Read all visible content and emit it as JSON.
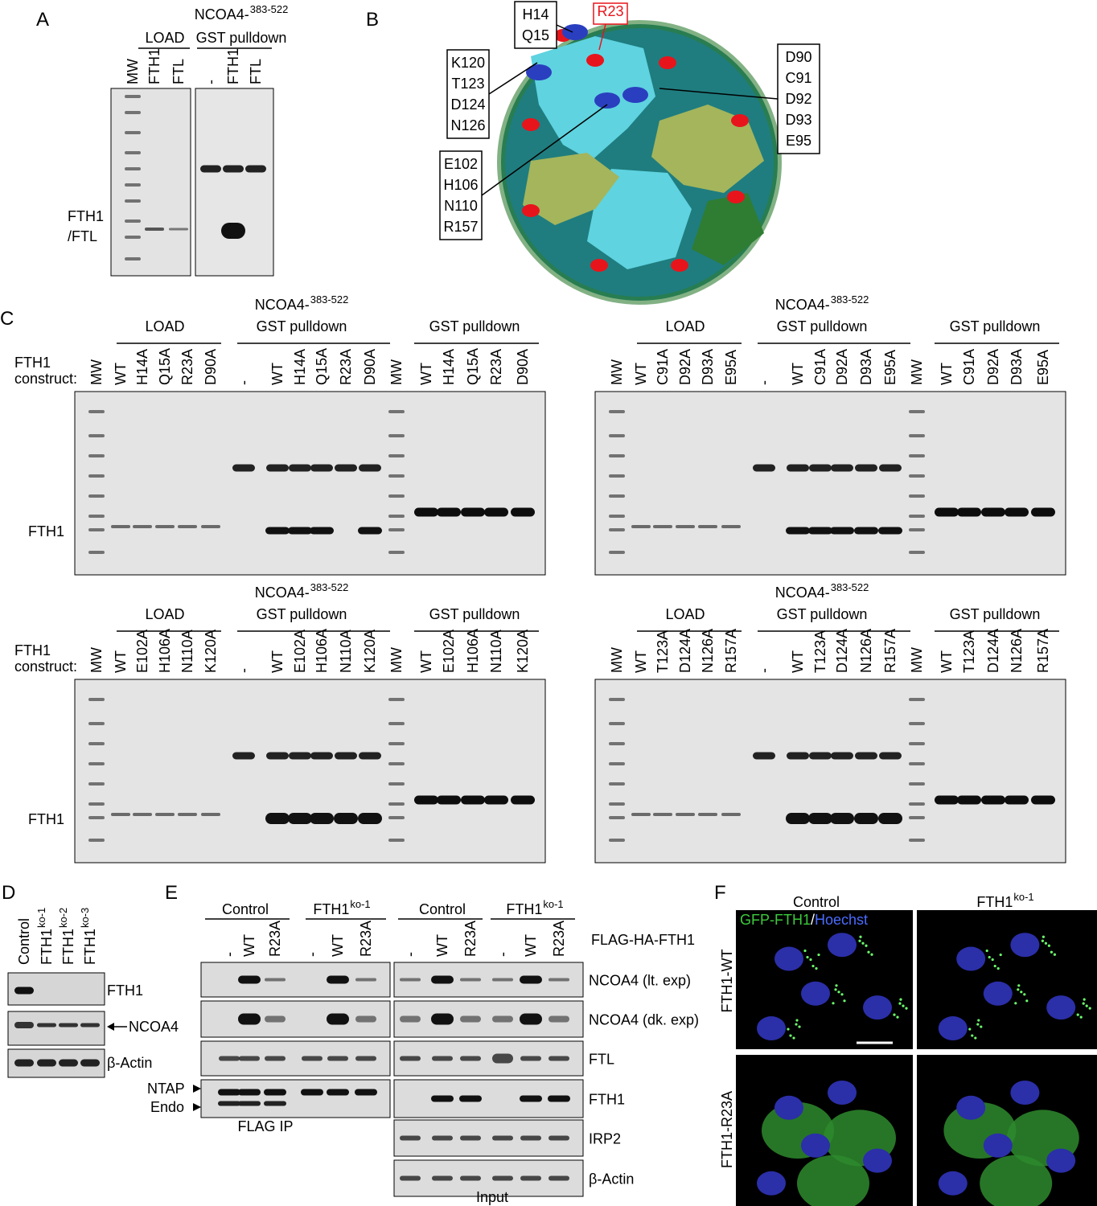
{
  "A": {
    "letter": "A",
    "load": "LOAD",
    "pulldown": {
      "text": "NCOA4-",
      "sup": "383-522",
      "line2": "GST pulldown"
    },
    "lanes": [
      "MW",
      "FTH1",
      "FTL",
      "-",
      "FTH1",
      "FTL"
    ],
    "band_label": [
      "FTH1",
      "/FTL"
    ]
  },
  "B": {
    "letter": "B",
    "callouts": [
      [
        "H14",
        "Q15"
      ],
      [
        "R23"
      ],
      [
        "K120",
        "T123",
        "D124",
        "N126"
      ],
      [
        "D90",
        "C91",
        "D92",
        "D93",
        "E95"
      ],
      [
        "E102",
        "H106",
        "N110",
        "R157"
      ]
    ]
  },
  "C": {
    "letter": "C",
    "gels": [
      {
        "construct_label": [
          "FTH1",
          "construct:"
        ],
        "band_label": "FTH1",
        "groups": [
          {
            "text": "LOAD"
          },
          {
            "text": "NCOA4-",
            "sup": "383-522",
            "line2": "GST pulldown"
          },
          {
            "text": "GST pulldown"
          }
        ],
        "lanes": [
          "MW",
          "WT",
          "H14A",
          "Q15A",
          "R23A",
          "D90A",
          "-",
          "WT",
          "H14A",
          "Q15A",
          "R23A",
          "D90A",
          "MW",
          "WT",
          "H14A",
          "Q15A",
          "R23A",
          "D90A"
        ]
      },
      {
        "groups": [
          {
            "text": "LOAD"
          },
          {
            "text": "NCOA4-",
            "sup": "383-522",
            "line2": "GST pulldown"
          },
          {
            "text": "GST pulldown"
          }
        ],
        "lanes": [
          "MW",
          "WT",
          "C91A",
          "D92A",
          "D93A",
          "E95A",
          "-",
          "WT",
          "C91A",
          "D92A",
          "D93A",
          "E95A",
          "MW",
          "WT",
          "C91A",
          "D92A",
          "D93A",
          "E95A"
        ]
      },
      {
        "construct_label": [
          "FTH1",
          "construct:"
        ],
        "band_label": "FTH1",
        "groups": [
          {
            "text": "LOAD"
          },
          {
            "text": "NCOA4-",
            "sup": "383-522",
            "line2": "GST pulldown"
          },
          {
            "text": "GST pulldown"
          }
        ],
        "lanes": [
          "MW",
          "WT",
          "E102A",
          "H106A",
          "N110A",
          "K120A",
          "-",
          "WT",
          "E102A",
          "H106A",
          "N110A",
          "K120A",
          "MW",
          "WT",
          "E102A",
          "H106A",
          "N110A",
          "K120A"
        ]
      },
      {
        "groups": [
          {
            "text": "LOAD"
          },
          {
            "text": "NCOA4-",
            "sup": "383-522",
            "line2": "GST pulldown"
          },
          {
            "text": "GST pulldown"
          }
        ],
        "lanes": [
          "MW",
          "WT",
          "T123A",
          "D124A",
          "N126A",
          "R157A",
          "-",
          "WT",
          "T123A",
          "D124A",
          "N126A",
          "R157A",
          "MW",
          "WT",
          "T123A",
          "D124A",
          "N126A",
          "R157A"
        ]
      }
    ]
  },
  "D": {
    "letter": "D",
    "lanes": [
      {
        "text": "Control"
      },
      {
        "text": "FTH1",
        "sup": "ko-1"
      },
      {
        "text": "FTH1",
        "sup": "ko-2"
      },
      {
        "text": "FTH1",
        "sup": "ko-3"
      }
    ],
    "rows": [
      "FTH1",
      "NCOA4",
      "β-Actin"
    ]
  },
  "E": {
    "letter": "E",
    "groups": [
      {
        "text": "Control"
      },
      {
        "text": "FTH1",
        "sup": "ko-1"
      },
      {
        "text": "Control"
      },
      {
        "text": "FTH1",
        "sup": "ko-1"
      }
    ],
    "lanes": [
      "-",
      "WT",
      "R23A",
      "-",
      "WT",
      "R23A",
      "-",
      "WT",
      "R23A",
      "-",
      "WT",
      "R23A"
    ],
    "construct": "FLAG-HA-FTH1",
    "rows": [
      "NCOA4 (lt. exp)",
      "NCOA4 (dk. exp)",
      "FTL",
      "FTH1",
      "IRP2",
      "β-Actin"
    ],
    "arrows": [
      "NTAP",
      "Endo"
    ],
    "ip_label": "FLAG IP",
    "input_label": "Input"
  },
  "F": {
    "letter": "F",
    "columns": [
      {
        "text": "Control"
      },
      {
        "text": "FTH1",
        "sup": "ko-1"
      }
    ],
    "rows": [
      "FTH1-WT",
      "FTH1-R23A"
    ],
    "stain": [
      "GFP-FTH1",
      "/",
      "Hoechst"
    ]
  }
}
